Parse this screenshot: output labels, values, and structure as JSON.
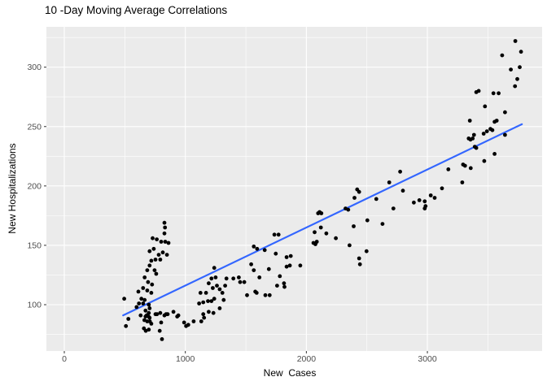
{
  "chart_data": {
    "type": "scatter",
    "title": "10 -Day Moving Average Correlations",
    "xlabel": "New  Cases",
    "ylabel": "New Hospitalizations",
    "x_ticks": [
      0,
      1000,
      2000,
      3000
    ],
    "x_minor_ticks": [
      500,
      1500,
      2500,
      3500
    ],
    "y_ticks": [
      100,
      150,
      200,
      250,
      300
    ],
    "y_minor_ticks": [
      75,
      125,
      175,
      225,
      275,
      325
    ],
    "xlim": [
      -148,
      3948
    ],
    "ylim": [
      61,
      334
    ],
    "grid": true,
    "legend": false,
    "panel_bg": "#EBEBEB",
    "grid_color": "#FFFFFF",
    "point_color": "#000000",
    "tick_label_color": "#4D4D4D",
    "tick_mark_color": "#333333",
    "trend_line": {
      "type": "linear",
      "color": "#3366FF",
      "x_start": 486,
      "y_start": 91,
      "x_end": 3781,
      "y_end": 252
    },
    "points": [
      [
        495,
        105
      ],
      [
        509,
        82
      ],
      [
        529,
        88
      ],
      [
        597,
        98
      ],
      [
        612,
        111
      ],
      [
        617,
        101
      ],
      [
        631,
        91
      ],
      [
        637,
        105
      ],
      [
        651,
        114
      ],
      [
        651,
        101
      ],
      [
        658,
        80
      ],
      [
        662,
        87
      ],
      [
        664,
        123
      ],
      [
        664,
        104
      ],
      [
        671,
        95
      ],
      [
        671,
        90
      ],
      [
        673,
        78
      ],
      [
        680,
        91
      ],
      [
        685,
        129
      ],
      [
        685,
        112
      ],
      [
        685,
        86
      ],
      [
        692,
        119
      ],
      [
        696,
        90
      ],
      [
        698,
        100
      ],
      [
        698,
        93
      ],
      [
        698,
        79
      ],
      [
        705,
        145
      ],
      [
        705,
        133
      ],
      [
        705,
        97
      ],
      [
        705,
        89
      ],
      [
        707,
        86
      ],
      [
        719,
        137
      ],
      [
        719,
        110
      ],
      [
        719,
        84
      ],
      [
        725,
        117
      ],
      [
        730,
        156
      ],
      [
        739,
        147
      ],
      [
        746,
        129
      ],
      [
        753,
        138
      ],
      [
        753,
        92
      ],
      [
        759,
        126
      ],
      [
        764,
        155
      ],
      [
        766,
        92
      ],
      [
        780,
        142
      ],
      [
        788,
        78
      ],
      [
        793,
        138
      ],
      [
        793,
        93
      ],
      [
        800,
        153
      ],
      [
        800,
        85
      ],
      [
        807,
        71
      ],
      [
        814,
        144
      ],
      [
        827,
        169
      ],
      [
        827,
        160
      ],
      [
        827,
        91
      ],
      [
        832,
        165
      ],
      [
        834,
        153
      ],
      [
        841,
        92
      ],
      [
        848,
        142
      ],
      [
        854,
        92
      ],
      [
        861,
        152
      ],
      [
        902,
        94
      ],
      [
        933,
        90
      ],
      [
        942,
        91
      ],
      [
        990,
        85
      ],
      [
        1006,
        82
      ],
      [
        1024,
        83
      ],
      [
        1069,
        86
      ],
      [
        1114,
        101
      ],
      [
        1125,
        110
      ],
      [
        1132,
        86
      ],
      [
        1148,
        102
      ],
      [
        1148,
        92
      ],
      [
        1155,
        89
      ],
      [
        1171,
        110
      ],
      [
        1187,
        103
      ],
      [
        1193,
        118
      ],
      [
        1193,
        94
      ],
      [
        1216,
        122
      ],
      [
        1216,
        103
      ],
      [
        1227,
        114
      ],
      [
        1232,
        93
      ],
      [
        1239,
        131
      ],
      [
        1239,
        105
      ],
      [
        1250,
        123
      ],
      [
        1261,
        116
      ],
      [
        1284,
        113
      ],
      [
        1284,
        97
      ],
      [
        1306,
        110
      ],
      [
        1317,
        104
      ],
      [
        1329,
        116
      ],
      [
        1340,
        122
      ],
      [
        1397,
        122
      ],
      [
        1442,
        123
      ],
      [
        1453,
        119
      ],
      [
        1487,
        119
      ],
      [
        1510,
        108
      ],
      [
        1544,
        134
      ],
      [
        1566,
        149
      ],
      [
        1566,
        129
      ],
      [
        1578,
        111
      ],
      [
        1589,
        110
      ],
      [
        1593,
        147
      ],
      [
        1612,
        123
      ],
      [
        1656,
        146
      ],
      [
        1661,
        108
      ],
      [
        1690,
        130
      ],
      [
        1697,
        108
      ],
      [
        1736,
        159
      ],
      [
        1747,
        143
      ],
      [
        1758,
        116
      ],
      [
        1770,
        159
      ],
      [
        1781,
        124
      ],
      [
        1815,
        118
      ],
      [
        1819,
        115
      ],
      [
        1837,
        140
      ],
      [
        1837,
        132
      ],
      [
        1864,
        133
      ],
      [
        1871,
        141
      ],
      [
        1950,
        133
      ],
      [
        2059,
        152
      ],
      [
        2068,
        161
      ],
      [
        2075,
        151
      ],
      [
        2086,
        153
      ],
      [
        2097,
        177
      ],
      [
        2109,
        178
      ],
      [
        2120,
        165
      ],
      [
        2124,
        177
      ],
      [
        2165,
        160
      ],
      [
        2244,
        156
      ],
      [
        2324,
        181
      ],
      [
        2346,
        180
      ],
      [
        2357,
        150
      ],
      [
        2391,
        166
      ],
      [
        2398,
        190
      ],
      [
        2420,
        197
      ],
      [
        2436,
        195
      ],
      [
        2436,
        139
      ],
      [
        2443,
        134
      ],
      [
        2497,
        145
      ],
      [
        2504,
        171
      ],
      [
        2578,
        189
      ],
      [
        2629,
        168
      ],
      [
        2685,
        203
      ],
      [
        2719,
        181
      ],
      [
        2775,
        212
      ],
      [
        2798,
        196
      ],
      [
        2888,
        186
      ],
      [
        2934,
        188
      ],
      [
        2978,
        187
      ],
      [
        2978,
        181
      ],
      [
        2985,
        183
      ],
      [
        3028,
        192
      ],
      [
        3060,
        190
      ],
      [
        3121,
        198
      ],
      [
        3173,
        214
      ],
      [
        3288,
        203
      ],
      [
        3295,
        218
      ],
      [
        3311,
        217
      ],
      [
        3341,
        240
      ],
      [
        3351,
        255
      ],
      [
        3356,
        239
      ],
      [
        3358,
        215
      ],
      [
        3374,
        240
      ],
      [
        3385,
        243
      ],
      [
        3392,
        233
      ],
      [
        3404,
        279
      ],
      [
        3404,
        232
      ],
      [
        3424,
        280
      ],
      [
        3465,
        244
      ],
      [
        3470,
        221
      ],
      [
        3476,
        267
      ],
      [
        3492,
        246
      ],
      [
        3521,
        248
      ],
      [
        3537,
        247
      ],
      [
        3546,
        278
      ],
      [
        3555,
        254
      ],
      [
        3555,
        227
      ],
      [
        3573,
        255
      ],
      [
        3589,
        278
      ],
      [
        3618,
        310
      ],
      [
        3641,
        262
      ],
      [
        3641,
        243
      ],
      [
        3690,
        298
      ],
      [
        3724,
        284
      ],
      [
        3727,
        322
      ],
      [
        3743,
        290
      ],
      [
        3763,
        300
      ],
      [
        3774,
        313
      ]
    ]
  }
}
